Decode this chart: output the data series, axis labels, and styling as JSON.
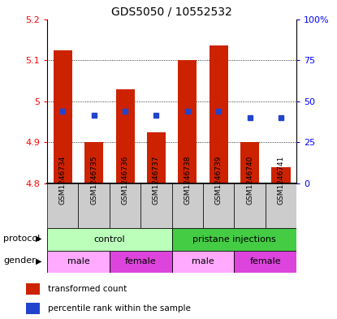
{
  "title": "GDS5050 / 10552532",
  "samples": [
    "GSM1246734",
    "GSM1246735",
    "GSM1246736",
    "GSM1246737",
    "GSM1246738",
    "GSM1246739",
    "GSM1246740",
    "GSM1246741"
  ],
  "bar_tops": [
    5.125,
    4.9,
    5.03,
    4.925,
    5.1,
    5.135,
    4.9,
    4.84
  ],
  "bar_bottom": 4.8,
  "blue_dots": [
    4.975,
    4.965,
    4.975,
    4.965,
    4.975,
    4.975,
    4.96,
    4.96
  ],
  "ylim": [
    4.8,
    5.2
  ],
  "y_left_ticks": [
    4.8,
    4.9,
    5.0,
    5.1,
    5.2
  ],
  "y_right_ticks": [
    0,
    25,
    50,
    75,
    100
  ],
  "y_right_tick_positions": [
    4.8,
    4.9,
    5.0,
    5.1,
    5.2
  ],
  "bar_color": "#cc2200",
  "blue_color": "#2244cc",
  "grid_color": "#000000",
  "protocol_groups": [
    {
      "label": "control",
      "start": 0,
      "end": 4,
      "color": "#bbffbb"
    },
    {
      "label": "pristane injections",
      "start": 4,
      "end": 8,
      "color": "#44cc44"
    }
  ],
  "gender_groups": [
    {
      "label": "male",
      "start": 0,
      "end": 2,
      "color": "#ffaaff"
    },
    {
      "label": "female",
      "start": 2,
      "end": 4,
      "color": "#dd44dd"
    },
    {
      "label": "male",
      "start": 4,
      "end": 6,
      "color": "#ffaaff"
    },
    {
      "label": "female",
      "start": 6,
      "end": 8,
      "color": "#dd44dd"
    }
  ],
  "sample_bg_color": "#cccccc",
  "legend_items": [
    {
      "label": "transformed count",
      "color": "#cc2200"
    },
    {
      "label": "percentile rank within the sample",
      "color": "#2244cc"
    }
  ]
}
